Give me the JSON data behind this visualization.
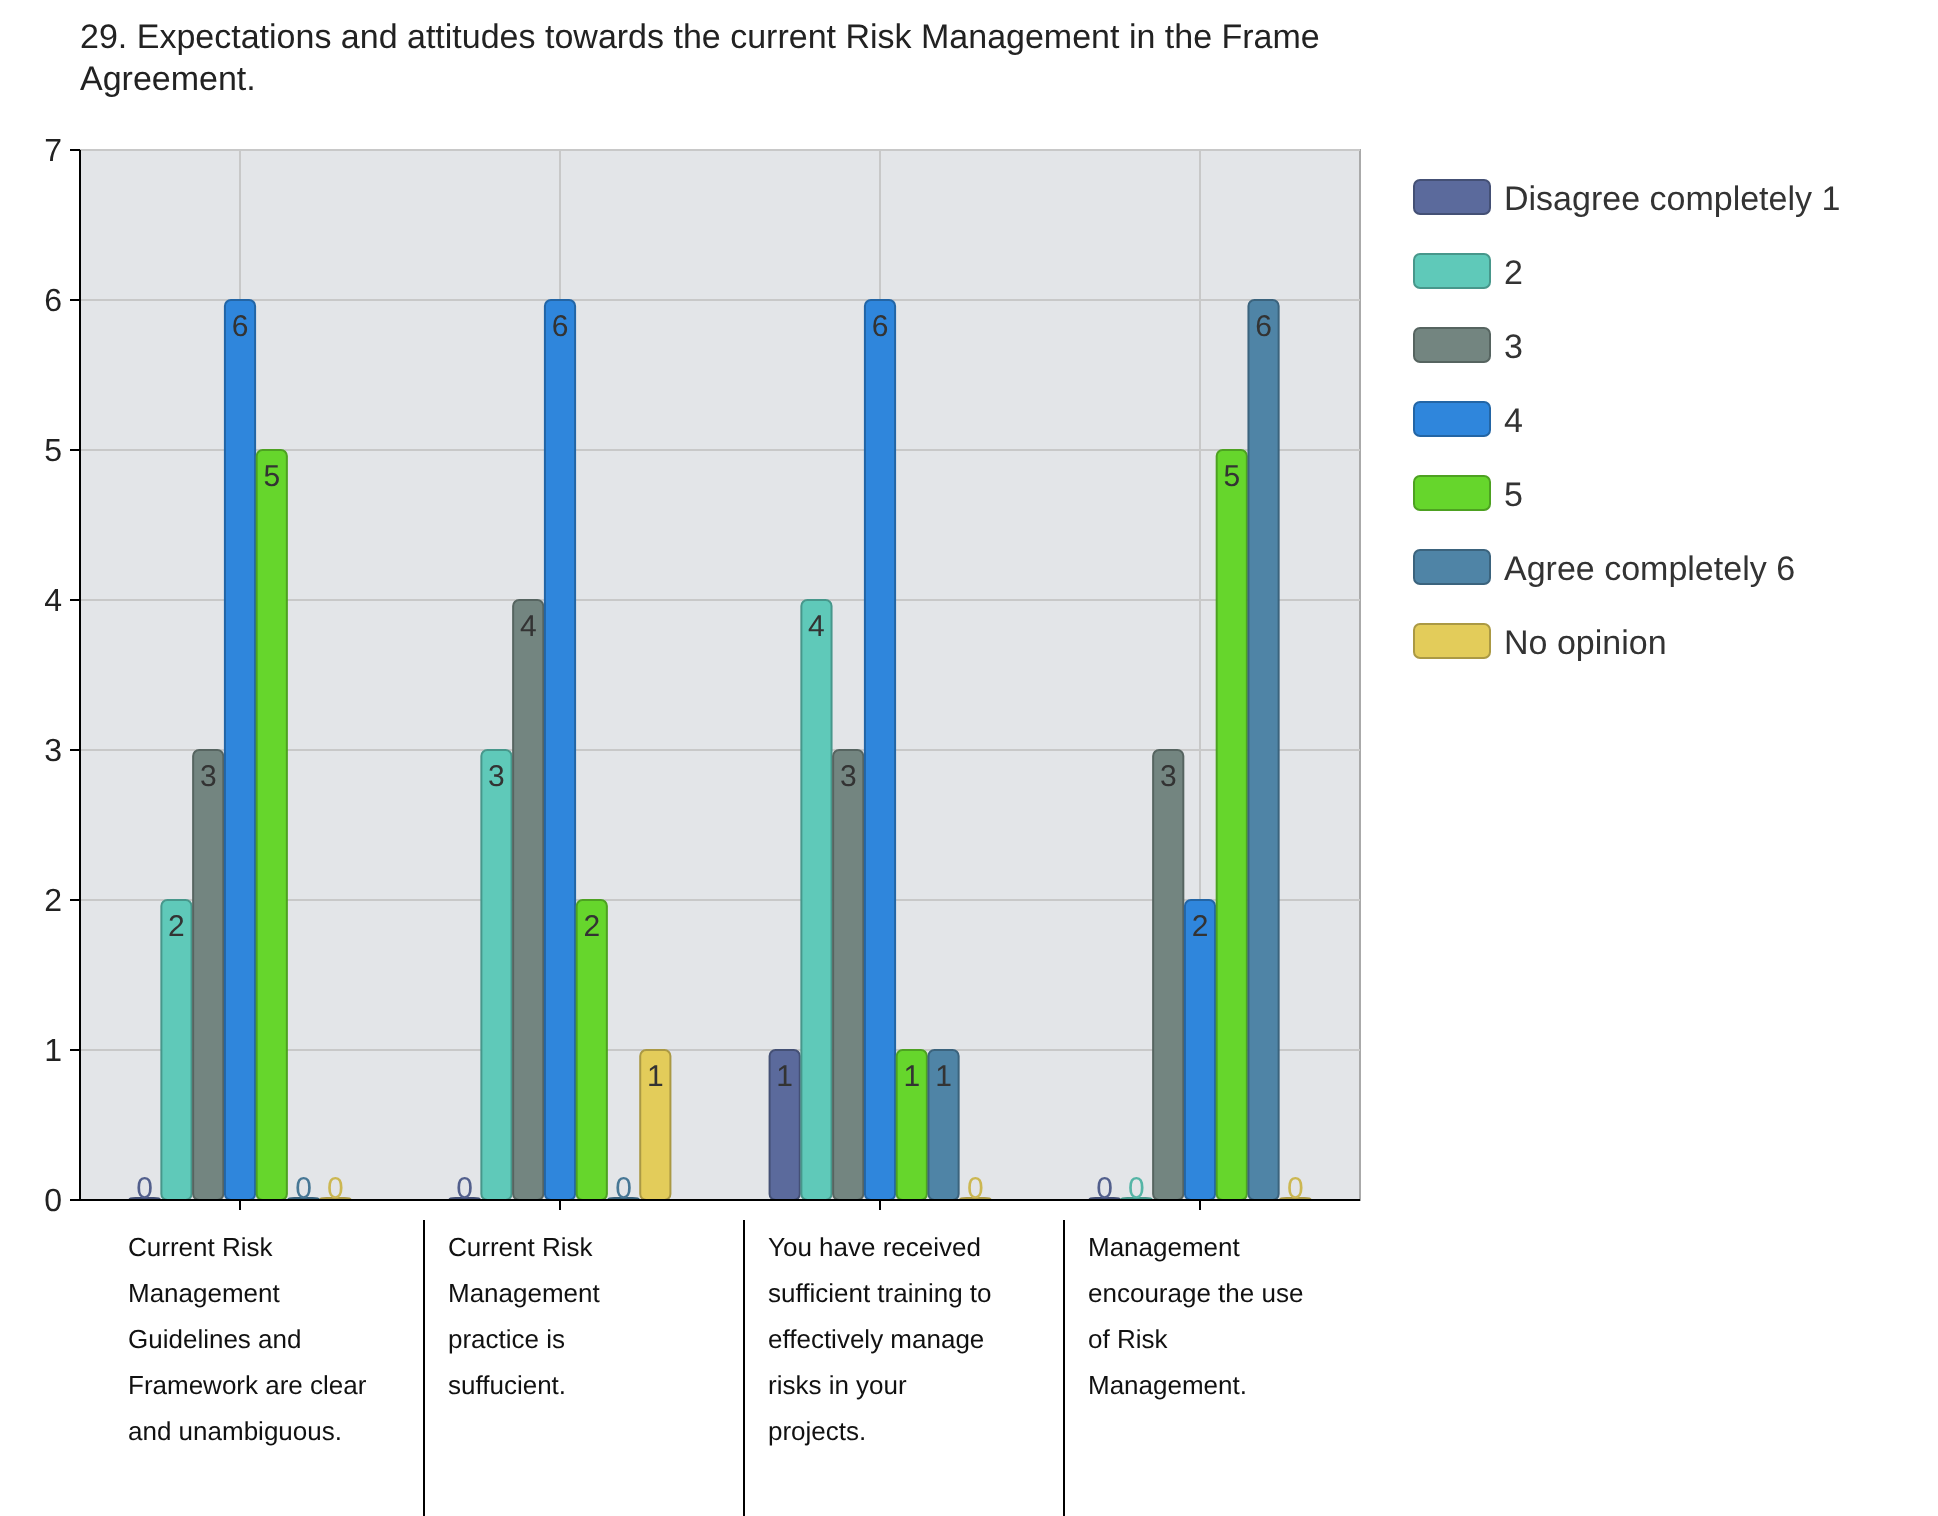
{
  "chart_data": {
    "type": "bar",
    "title": "29. Expectations and attitudes towards the current Risk Management in the Frame Agreement.",
    "categories": [
      "Current Risk Management Guidelines and Framework are clear and unambiguous.",
      "Current Risk Management practice is suffucient.",
      "You have received sufficient training to effectively manage risks in your projects.",
      "Management encourage the use of Risk Management."
    ],
    "series": [
      {
        "name": "Disagree completely 1",
        "color": "#5b6a9c",
        "values": [
          0,
          0,
          1,
          0
        ]
      },
      {
        "name": "2",
        "color": "#5fc9b9",
        "values": [
          2,
          3,
          4,
          0
        ]
      },
      {
        "name": "3",
        "color": "#738580",
        "values": [
          3,
          4,
          3,
          3
        ]
      },
      {
        "name": "4",
        "color": "#2f86dc",
        "values": [
          6,
          6,
          6,
          2
        ]
      },
      {
        "name": "5",
        "color": "#66d62c",
        "values": [
          5,
          2,
          1,
          5
        ]
      },
      {
        "name": "Agree completely  6",
        "color": "#4f84a6",
        "values": [
          0,
          0,
          1,
          6
        ]
      },
      {
        "name": "No opinion",
        "color": "#e3cc5a",
        "values": [
          0,
          1,
          0,
          0
        ]
      }
    ],
    "ylim": [
      0,
      7
    ],
    "yticks": [
      0,
      1,
      2,
      3,
      4,
      5,
      6,
      7
    ],
    "grid": true,
    "legend": "right",
    "data_labels": true
  }
}
